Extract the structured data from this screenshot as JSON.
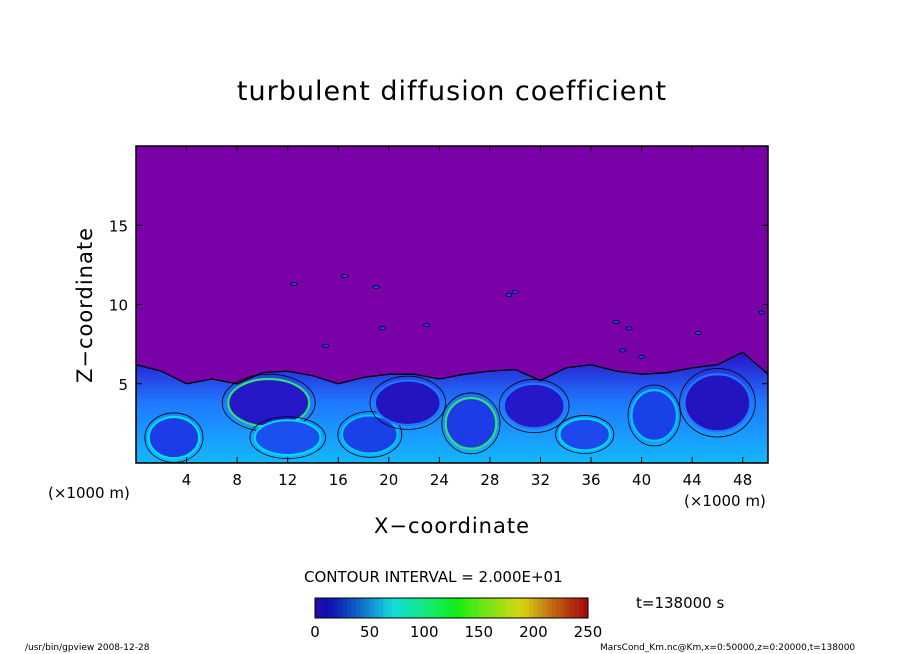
{
  "chart_data": {
    "type": "heatmap",
    "title": "turbulent diffusion coefficient",
    "xlabel": "X−coordinate",
    "ylabel": "Z−coordinate",
    "x_unit_label": "(×1000 m)",
    "y_unit_label": "(×1000 m)",
    "xlim": [
      0,
      50
    ],
    "ylim": [
      0,
      20
    ],
    "x_ticks": [
      4,
      8,
      12,
      16,
      20,
      24,
      28,
      32,
      36,
      40,
      44,
      48
    ],
    "y_ticks": [
      5,
      10,
      15
    ],
    "contour_interval_text": "CONTOUR INTERVAL = 2.000E+01",
    "colorbar": {
      "min": 0,
      "max": 250,
      "ticks": [
        0,
        50,
        100,
        150,
        200,
        250
      ]
    },
    "time_text": "t=138000 s",
    "background_value": 0,
    "convective_layer_top_km": [
      6.2,
      5.8,
      5.0,
      5.3,
      5.0,
      5.7,
      5.8,
      5.5,
      5.0,
      5.4,
      5.6,
      5.6,
      5.3,
      5.6,
      5.8,
      5.9,
      5.2,
      6.0,
      6.2,
      5.8,
      5.6,
      5.7,
      6.0,
      6.2,
      7.0,
      5.6
    ]
  },
  "colors": {
    "background_fill": "#7a00a8",
    "low_values": "#2a10c8",
    "mid_values": "#1f78ff",
    "high_values": "#00d8ff",
    "peak_values": "#30e070"
  },
  "footer_left": "/usr/bin/gpview   2008-12-28",
  "footer_right": "MarsCond_Km.nc@Km,x=0:50000,z=0:20000,t=138000"
}
